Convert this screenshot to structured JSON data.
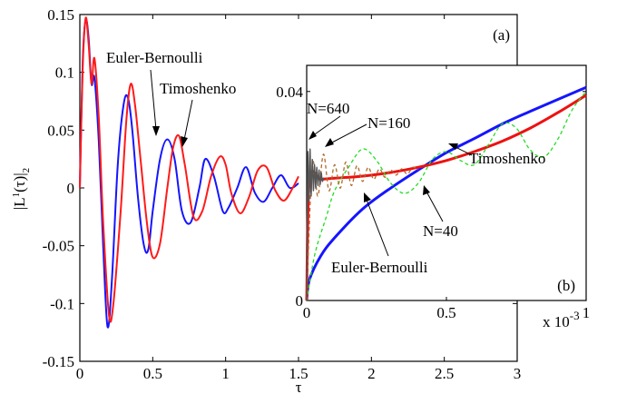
{
  "chart_data": [
    {
      "type": "line",
      "panel_label": "(a)",
      "xlabel": "τ",
      "ylabel_base": "|L",
      "ylabel_sup": "1",
      "ylabel_mid": "(τ)|",
      "ylabel_sub": "2",
      "xlim": [
        0,
        3
      ],
      "ylim": [
        -0.15,
        0.15
      ],
      "xticks": [
        0,
        0.5,
        1,
        1.5,
        2,
        2.5,
        3
      ],
      "xtick_labels": [
        "0",
        "0.5",
        "1",
        "1.5",
        "2",
        "2.5",
        "3"
      ],
      "yticks": [
        -0.15,
        -0.1,
        -0.05,
        0,
        0.05,
        0.1,
        0.15
      ],
      "ytick_labels": [
        "-0.15",
        "-0.1",
        "-0.05",
        "0",
        "0.05",
        "0.1",
        "0.15"
      ],
      "series": [
        {
          "name": "Euler-Bernoulli",
          "color": "#1515ff",
          "x": [
            0,
            0.02,
            0.04,
            0.06,
            0.08,
            0.1,
            0.13,
            0.16,
            0.19,
            0.22,
            0.26,
            0.3,
            0.33,
            0.36,
            0.4,
            0.44,
            0.47,
            0.5,
            0.55,
            0.6,
            0.65,
            0.7,
            0.76,
            0.82,
            0.86,
            0.92,
            0.98,
            1.02,
            1.08,
            1.14,
            1.2,
            1.26,
            1.32,
            1.38,
            1.44,
            1.5
          ],
          "y": [
            0,
            0.11,
            0.145,
            0.13,
            0.09,
            0.095,
            0.04,
            -0.05,
            -0.12,
            -0.08,
            0.02,
            0.072,
            0.078,
            0.05,
            -0.01,
            -0.05,
            -0.053,
            -0.02,
            0.025,
            0.042,
            0.025,
            -0.02,
            -0.03,
            0.0,
            0.025,
            0.01,
            -0.02,
            -0.017,
            0.0,
            0.018,
            -0.004,
            -0.012,
            0.0,
            0.011,
            0.0,
            0.004
          ]
        },
        {
          "name": "Timoshenko",
          "color": "#ff1a1a",
          "x": [
            0,
            0.02,
            0.04,
            0.06,
            0.08,
            0.1,
            0.13,
            0.16,
            0.2,
            0.23,
            0.28,
            0.32,
            0.35,
            0.38,
            0.42,
            0.46,
            0.5,
            0.55,
            0.6,
            0.64,
            0.68,
            0.72,
            0.78,
            0.84,
            0.9,
            0.96,
            1.0,
            1.04,
            1.1,
            1.16,
            1.22,
            1.28,
            1.34,
            1.4,
            1.46,
            1.5
          ],
          "y": [
            0,
            0.105,
            0.147,
            0.125,
            0.09,
            0.112,
            0.06,
            -0.03,
            -0.11,
            -0.1,
            -0.02,
            0.06,
            0.09,
            0.07,
            0.02,
            -0.03,
            -0.06,
            -0.048,
            0.0,
            0.035,
            0.045,
            0.02,
            -0.025,
            -0.02,
            0.01,
            0.027,
            0.02,
            -0.005,
            -0.022,
            -0.008,
            0.015,
            0.018,
            -0.002,
            -0.011,
            0.0,
            0.01
          ]
        }
      ],
      "annotations": [
        "Euler-Bernoulli",
        "Timoshenko"
      ]
    },
    {
      "type": "line",
      "panel_label": "(b)",
      "xlim": [
        0,
        0.001
      ],
      "ylim": [
        0,
        0.045
      ],
      "x_multiplier_label": "x 10",
      "x_multiplier_exp": "-3",
      "xticks": [
        0,
        0.0005,
        0.001
      ],
      "xtick_labels": [
        "0",
        "0.5",
        "1"
      ],
      "yticks": [
        0,
        0.04
      ],
      "ytick_labels": [
        "0",
        "0.04"
      ],
      "series": [
        {
          "name": "Euler-Bernoulli",
          "color": "#1515ff",
          "x": [
            0,
            1e-05,
            5e-05,
            0.0001,
            0.0002,
            0.0003,
            0.0004,
            0.0005,
            0.0006,
            0.0007,
            0.0008,
            0.0009,
            0.001
          ],
          "y": [
            0,
            0.004,
            0.0085,
            0.012,
            0.0175,
            0.0215,
            0.025,
            0.0283,
            0.031,
            0.0338,
            0.0362,
            0.0385,
            0.0408
          ]
        },
        {
          "name": "Timoshenko",
          "color": "#ee1111",
          "x": [
            0,
            1e-05,
            5e-05,
            0.0001,
            0.0002,
            0.0003,
            0.0004,
            0.0005,
            0.0006,
            0.0007,
            0.0008,
            0.0009,
            0.001
          ],
          "y": [
            0,
            0.023,
            0.0232,
            0.0234,
            0.0238,
            0.0245,
            0.0255,
            0.0268,
            0.0285,
            0.0305,
            0.033,
            0.036,
            0.0393
          ]
        },
        {
          "name": "N=40",
          "color": "#22dd22",
          "x": [
            0,
            3e-05,
            7e-05,
            0.0001,
            0.00015,
            0.0002,
            0.00025,
            0.0003,
            0.00035,
            0.0004,
            0.00045,
            0.0005,
            0.00055,
            0.0006,
            0.00065,
            0.0007,
            0.00075,
            0.0008,
            0.00085,
            0.0009,
            0.00095,
            0.001
          ],
          "y": [
            0,
            0.009,
            0.016,
            0.021,
            0.0255,
            0.029,
            0.0268,
            0.0225,
            0.0205,
            0.0225,
            0.027,
            0.0285,
            0.0268,
            0.026,
            0.0298,
            0.0338,
            0.033,
            0.0288,
            0.0275,
            0.031,
            0.0365,
            0.04
          ]
        },
        {
          "name": "N=160",
          "color": "#b06a2a",
          "x": [
            0,
            2e-05,
            4e-05,
            6e-05,
            8e-05,
            0.0001,
            0.00012,
            0.00014,
            0.00016,
            0.00018,
            0.0002,
            0.00022,
            0.00024,
            0.00026,
            0.00028,
            0.0003,
            0.00032,
            0.00034,
            0.00036,
            0.00038,
            0.0004
          ],
          "y": [
            0,
            0.026,
            0.02,
            0.028,
            0.021,
            0.026,
            0.0215,
            0.0265,
            0.022,
            0.0258,
            0.0228,
            0.0255,
            0.0232,
            0.0252,
            0.0236,
            0.025,
            0.024,
            0.0252,
            0.0242,
            0.0255,
            0.025
          ]
        },
        {
          "name": "N=640",
          "color": "#555555",
          "x": [
            0,
            4e-06,
            8e-06,
            1.2e-05,
            1.6e-05,
            2e-05,
            2.4e-05,
            2.8e-05,
            3.2e-05,
            3.6e-05,
            4e-05,
            4.4e-05,
            4.8e-05,
            5.2e-05,
            5.6e-05,
            6e-05
          ],
          "y": [
            0,
            0.028,
            0.019,
            0.029,
            0.02,
            0.027,
            0.021,
            0.026,
            0.0215,
            0.0255,
            0.022,
            0.025,
            0.0222,
            0.0245,
            0.0228,
            0.0235
          ]
        }
      ],
      "annotations": [
        "N=640",
        "N=160",
        "N=40",
        "Timoshenko",
        "Euler-Bernoulli"
      ]
    }
  ]
}
